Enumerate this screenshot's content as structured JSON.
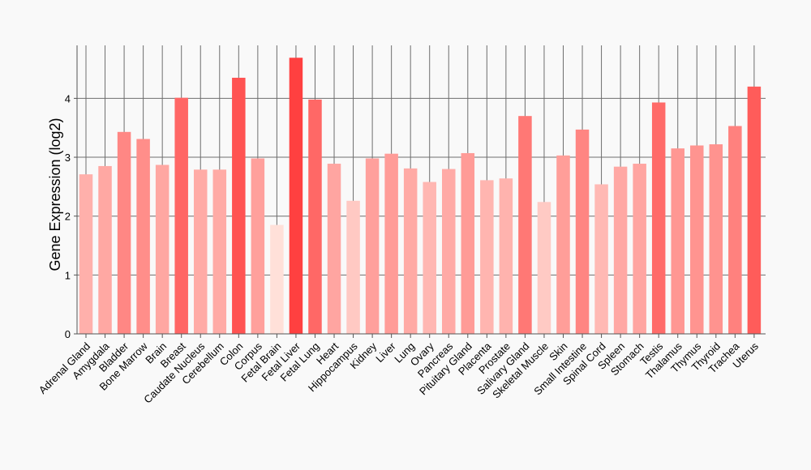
{
  "chart_data": {
    "type": "bar",
    "title": "",
    "xlabel": "",
    "ylabel": "Gene Expression (log2)",
    "ylim": [
      0,
      4.9
    ],
    "yticks": [
      0,
      1,
      2,
      3,
      4
    ],
    "grid": true,
    "categories": [
      "Adrenal Gland",
      "Amygdala",
      "Bladder",
      "Bone Marrow",
      "Brain",
      "Breast",
      "Caudate Nucleus",
      "Cerebellum",
      "Colon",
      "Corpus",
      "Fetal Brain",
      "Fetal Liver",
      "Fetal Lung",
      "Heart",
      "Hippocampus",
      "Kidney",
      "Liver",
      "Lung",
      "Ovary",
      "Pancreas",
      "Pituitary Gland",
      "Placenta",
      "Prostate",
      "Salivary Gland",
      "Skeletal Muscle",
      "Skin",
      "Small Intestine",
      "Spinal Cord",
      "Spleen",
      "Stomach",
      "Testis",
      "Thalamus",
      "Thymus",
      "Thyroid",
      "Trachea",
      "Uterus"
    ],
    "values": [
      2.71,
      2.85,
      3.43,
      3.31,
      2.87,
      4.01,
      2.79,
      2.79,
      4.35,
      2.98,
      1.85,
      4.69,
      3.98,
      2.89,
      2.26,
      2.98,
      3.06,
      2.81,
      2.58,
      2.8,
      3.07,
      2.61,
      2.64,
      3.7,
      2.24,
      3.03,
      3.47,
      2.54,
      2.84,
      2.89,
      3.93,
      3.15,
      3.2,
      3.22,
      3.53,
      4.2
    ],
    "color_scale": {
      "low": "#ffe0d9",
      "high": "#ff4040"
    }
  }
}
